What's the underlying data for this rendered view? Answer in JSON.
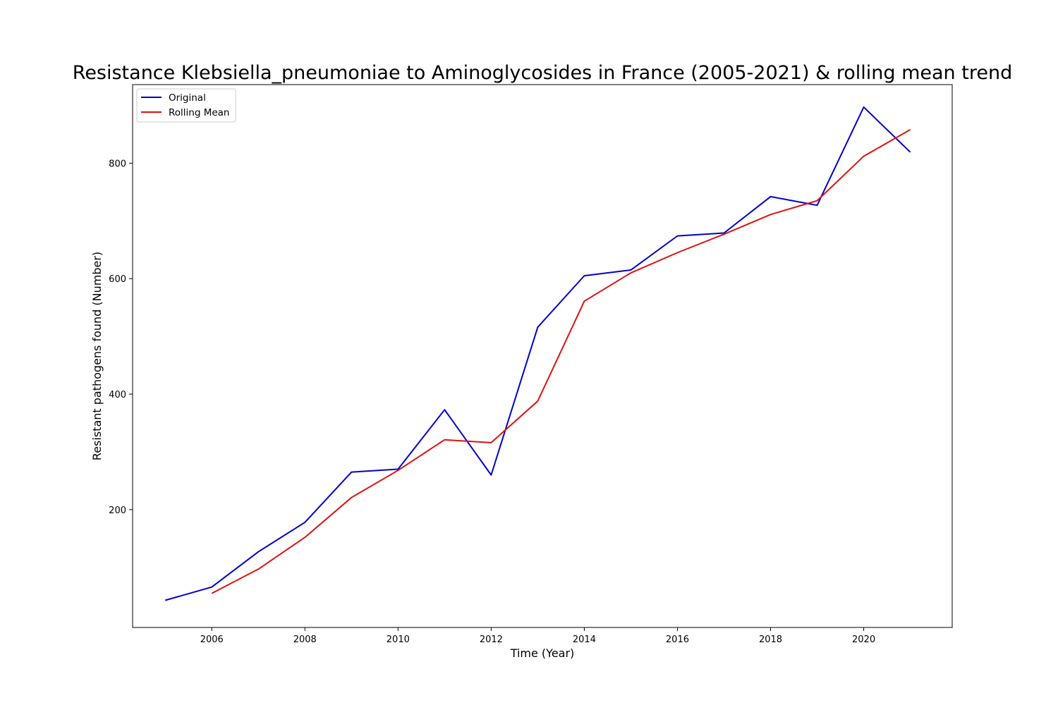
{
  "chart_data": {
    "type": "line",
    "title": "Resistance Klebsiella_pneumoniae to Aminoglycosides in France (2005-2021) & rolling mean trend",
    "xlabel": "Time (Year)",
    "ylabel": "Resistant pathogens found (Number)",
    "xlim": [
      2004.3,
      2021.9
    ],
    "ylim": [
      -4,
      936
    ],
    "xticks": [
      2006,
      2008,
      2010,
      2012,
      2014,
      2016,
      2018,
      2020
    ],
    "yticks": [
      200,
      400,
      600,
      800
    ],
    "grid": false,
    "legend_position": "top-left",
    "series": [
      {
        "name": "Original",
        "color": "#0000cc",
        "x": [
          2005,
          2006,
          2007,
          2008,
          2009,
          2010,
          2011,
          2012,
          2013,
          2014,
          2015,
          2016,
          2017,
          2018,
          2019,
          2020,
          2021
        ],
        "y": [
          43,
          66,
          127,
          178,
          265,
          270,
          373,
          260,
          516,
          605,
          615,
          674,
          679,
          742,
          727,
          897,
          819
        ]
      },
      {
        "name": "Rolling Mean",
        "color": "#dd1111",
        "x": [
          2006,
          2007,
          2008,
          2009,
          2010,
          2011,
          2012,
          2013,
          2014,
          2015,
          2016,
          2017,
          2018,
          2019,
          2020,
          2021
        ],
        "y": [
          55,
          97,
          152,
          221,
          268,
          321,
          316,
          388,
          561,
          610,
          645,
          677,
          711,
          735,
          812,
          858
        ]
      }
    ]
  }
}
